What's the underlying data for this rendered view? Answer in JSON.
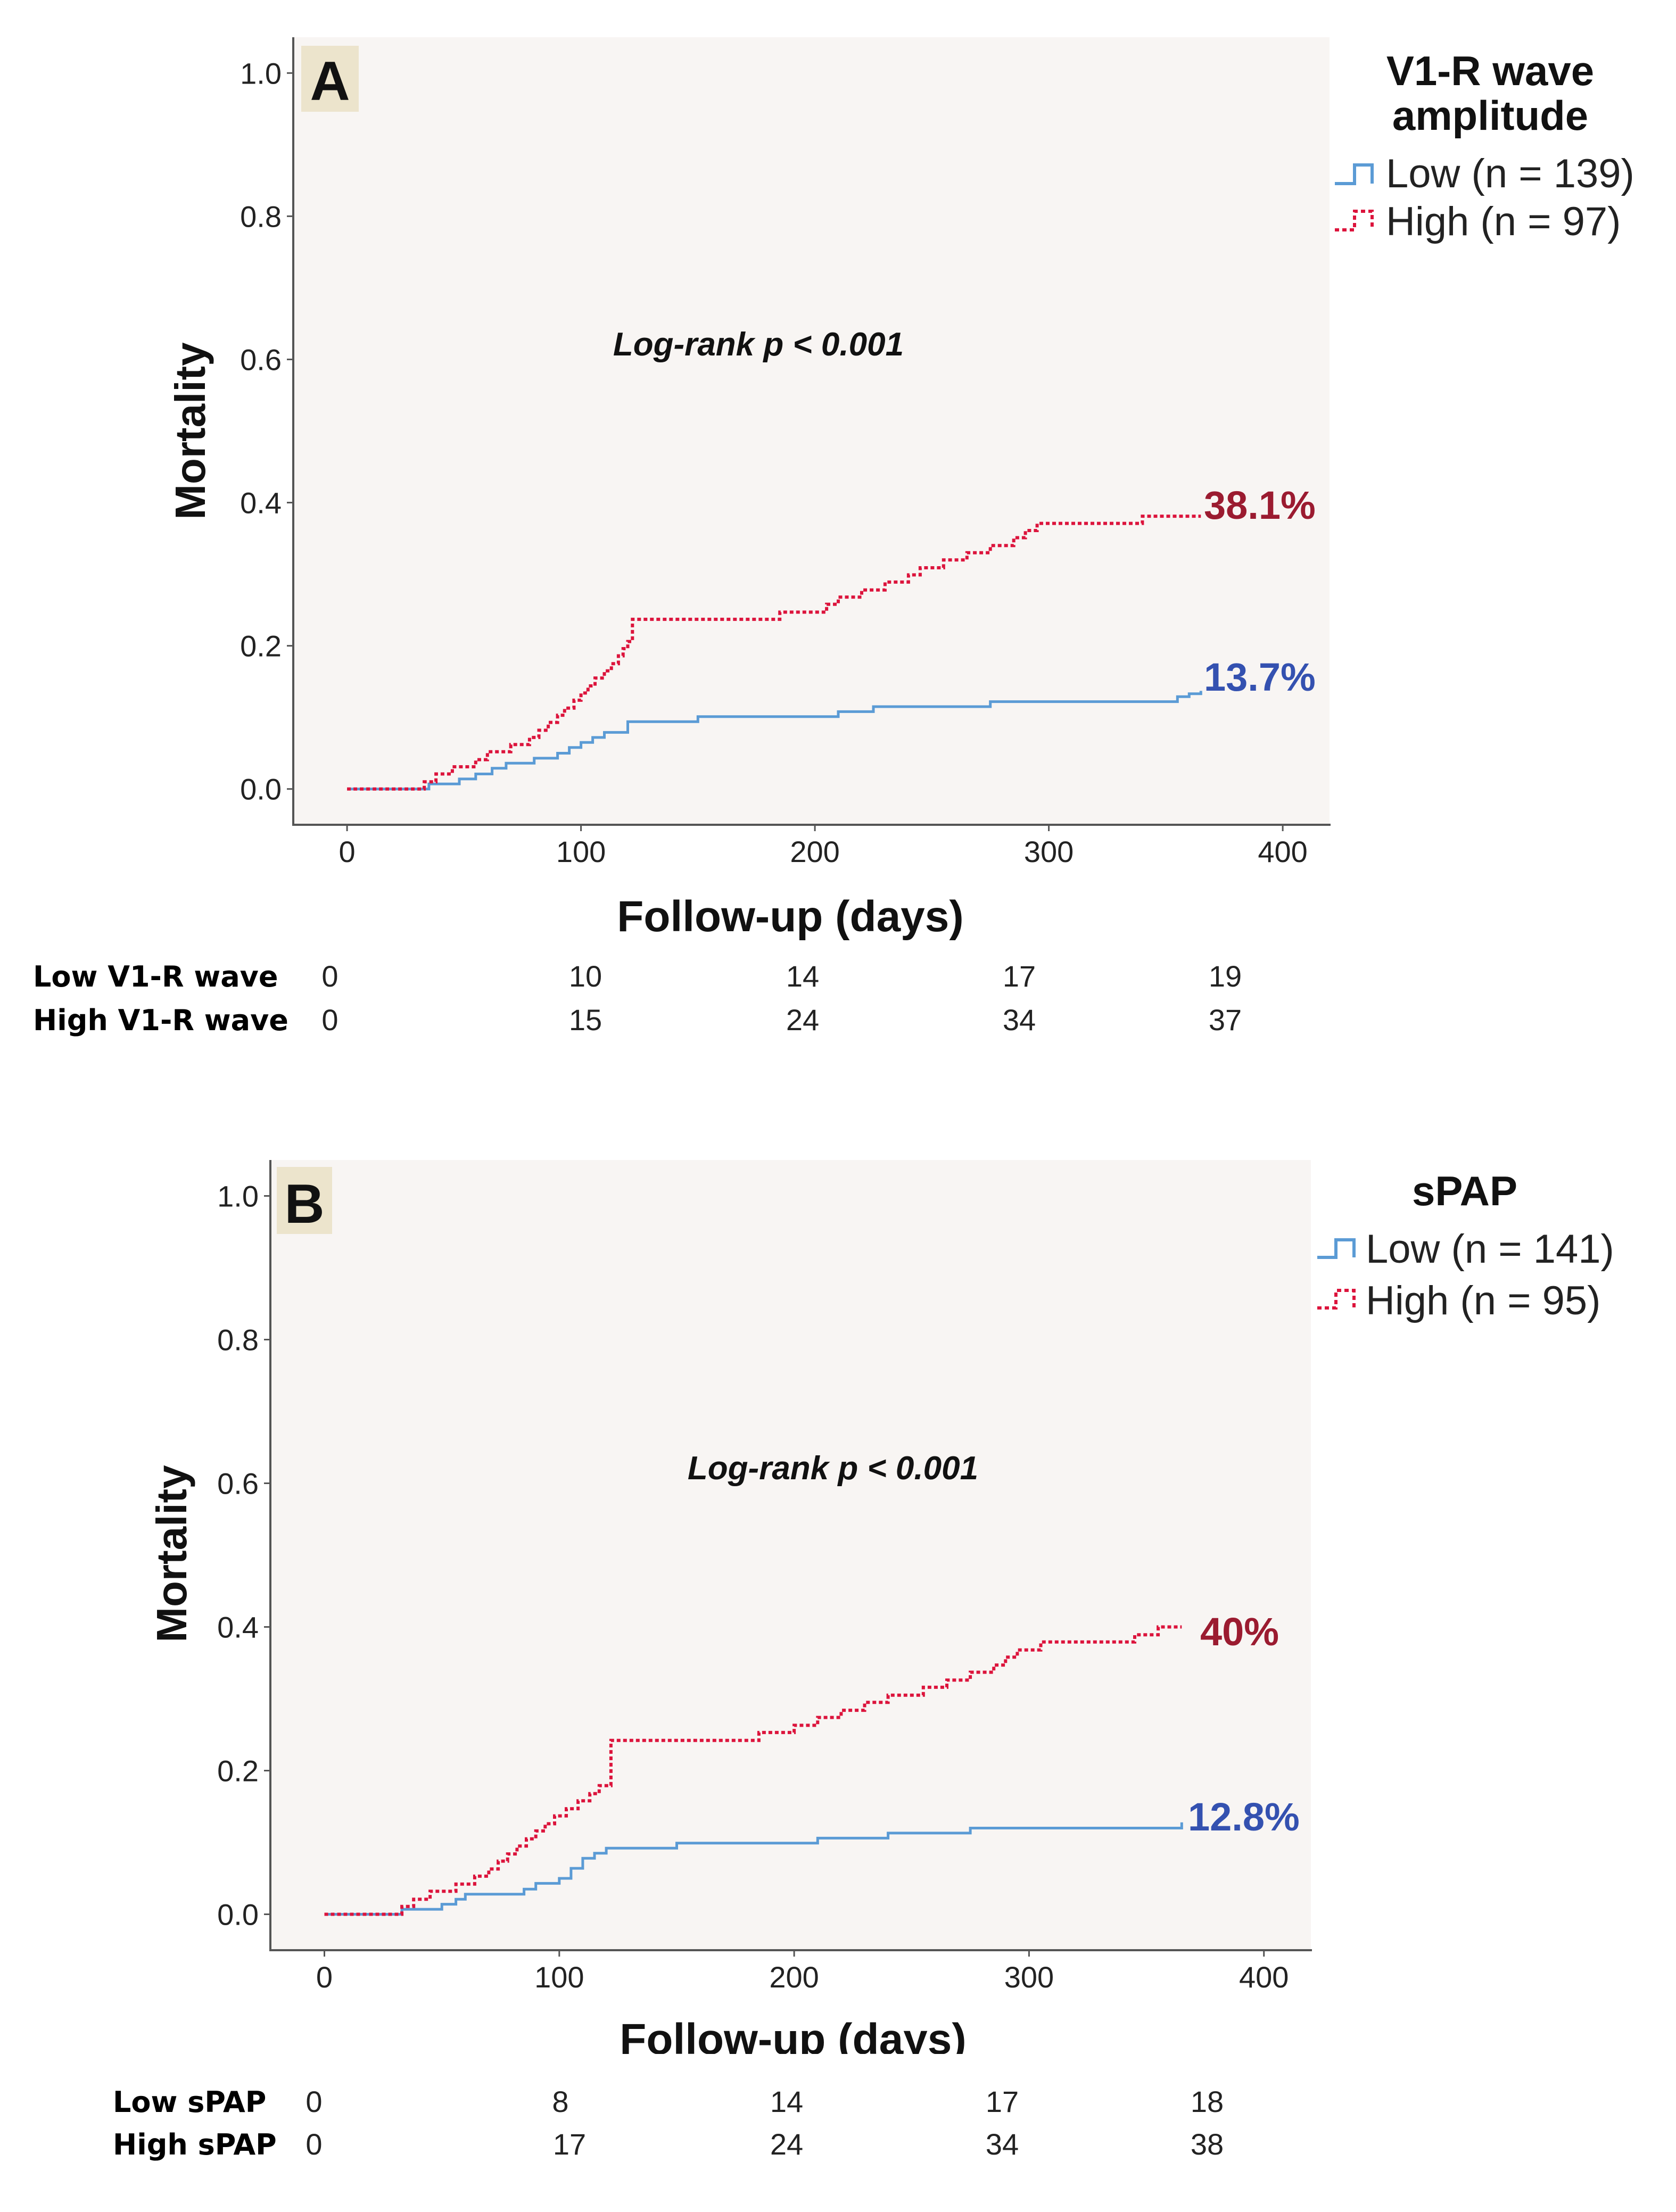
{
  "chart_data": [
    {
      "type": "line",
      "subtype": "kaplan-meier",
      "panel_label": "A",
      "title": "",
      "xlabel": "Follow-up (days)",
      "ylabel": "Mortality",
      "xlim": [
        -23,
        420
      ],
      "ylim": [
        -0.05,
        1.05
      ],
      "xticks": [
        "0",
        "100",
        "200",
        "300",
        "400"
      ],
      "yticks": [
        "0.0",
        "0.2",
        "0.4",
        "0.6",
        "0.8",
        "1.0"
      ],
      "grid": false,
      "annotation": "Log-rank p < 0.001",
      "legend": {
        "title": "V1-R wave amplitude",
        "position": "right",
        "entries": [
          "Low (n = 139)",
          "High (n = 97)"
        ]
      },
      "series": [
        {
          "name": "Low (n = 139)",
          "style": "solid",
          "color": "#5b9bd5",
          "end_label": "13.7%",
          "end_label_color": "#3451b0",
          "x": [
            0,
            35,
            48,
            55,
            62,
            68,
            80,
            90,
            95,
            100,
            105,
            110,
            120,
            150,
            210,
            225,
            275,
            355,
            360,
            365
          ],
          "y": [
            0,
            0.007,
            0.014,
            0.021,
            0.029,
            0.036,
            0.043,
            0.05,
            0.058,
            0.065,
            0.072,
            0.079,
            0.094,
            0.101,
            0.108,
            0.115,
            0.122,
            0.129,
            0.133,
            0.137
          ]
        },
        {
          "name": "High (n = 97)",
          "style": "dotted",
          "color": "#dc143c",
          "end_label": "38.1%",
          "end_label_color": "#9b1b30",
          "x": [
            0,
            33,
            38,
            45,
            55,
            60,
            70,
            78,
            82,
            86,
            90,
            93,
            97,
            100,
            103,
            106,
            110,
            113,
            116,
            118,
            120,
            122,
            185,
            205,
            210,
            220,
            230,
            240,
            245,
            255,
            265,
            275,
            285,
            290,
            295,
            305,
            340,
            365
          ],
          "y": [
            0,
            0.01,
            0.021,
            0.031,
            0.041,
            0.052,
            0.062,
            0.072,
            0.082,
            0.093,
            0.103,
            0.113,
            0.124,
            0.134,
            0.144,
            0.155,
            0.165,
            0.175,
            0.186,
            0.196,
            0.206,
            0.237,
            0.247,
            0.258,
            0.268,
            0.278,
            0.289,
            0.299,
            0.309,
            0.32,
            0.33,
            0.34,
            0.351,
            0.361,
            0.371,
            0.371,
            0.381,
            0.381
          ]
        }
      ],
      "risk_table": {
        "rows": [
          {
            "label": "Low V1-R wave",
            "values": [
              "0",
              "10",
              "14",
              "17",
              "19"
            ]
          },
          {
            "label": "High V1-R wave",
            "values": [
              "0",
              "15",
              "24",
              "34",
              "37"
            ]
          }
        ]
      }
    },
    {
      "type": "line",
      "subtype": "kaplan-meier",
      "panel_label": "B",
      "title": "",
      "xlabel": "Follow-up (days)",
      "ylabel": "Mortality",
      "xlim": [
        -23,
        420
      ],
      "ylim": [
        -0.05,
        1.05
      ],
      "xticks": [
        "0",
        "100",
        "200",
        "300",
        "400"
      ],
      "yticks": [
        "0.0",
        "0.2",
        "0.4",
        "0.6",
        "0.8",
        "1.0"
      ],
      "grid": false,
      "annotation": "Log-rank p < 0.001",
      "legend": {
        "title": "sPAP",
        "position": "right",
        "entries": [
          "Low (n = 141)",
          "High (n = 95)"
        ]
      },
      "series": [
        {
          "name": "Low (n = 141)",
          "style": "solid",
          "color": "#5b9bd5",
          "end_label": "12.8%",
          "end_label_color": "#3451b0",
          "x": [
            0,
            33,
            50,
            56,
            60,
            85,
            90,
            100,
            105,
            110,
            115,
            120,
            150,
            210,
            240,
            275,
            365
          ],
          "y": [
            0,
            0.007,
            0.014,
            0.021,
            0.028,
            0.035,
            0.043,
            0.05,
            0.064,
            0.078,
            0.085,
            0.092,
            0.099,
            0.106,
            0.113,
            0.12,
            0.128
          ]
        },
        {
          "name": "High (n = 95)",
          "style": "dotted",
          "color": "#dc143c",
          "end_label": "40%",
          "end_label_color": "#9b1b30",
          "x": [
            0,
            33,
            38,
            45,
            56,
            64,
            70,
            74,
            78,
            82,
            86,
            90,
            94,
            98,
            103,
            108,
            113,
            117,
            122,
            185,
            200,
            210,
            220,
            230,
            240,
            255,
            265,
            275,
            285,
            290,
            295,
            305,
            345,
            355,
            365
          ],
          "y": [
            0,
            0.011,
            0.021,
            0.032,
            0.042,
            0.053,
            0.063,
            0.074,
            0.084,
            0.095,
            0.105,
            0.116,
            0.126,
            0.137,
            0.147,
            0.158,
            0.168,
            0.179,
            0.242,
            0.253,
            0.263,
            0.274,
            0.284,
            0.295,
            0.305,
            0.316,
            0.326,
            0.337,
            0.347,
            0.358,
            0.368,
            0.379,
            0.389,
            0.4,
            0.4
          ]
        }
      ],
      "risk_table": {
        "rows": [
          {
            "label": "Low sPAP",
            "values": [
              "0",
              "8",
              "14",
              "17",
              "18"
            ]
          },
          {
            "label": "High sPAP",
            "values": [
              "0",
              "17",
              "24",
              "34",
              "38"
            ]
          }
        ]
      }
    }
  ]
}
